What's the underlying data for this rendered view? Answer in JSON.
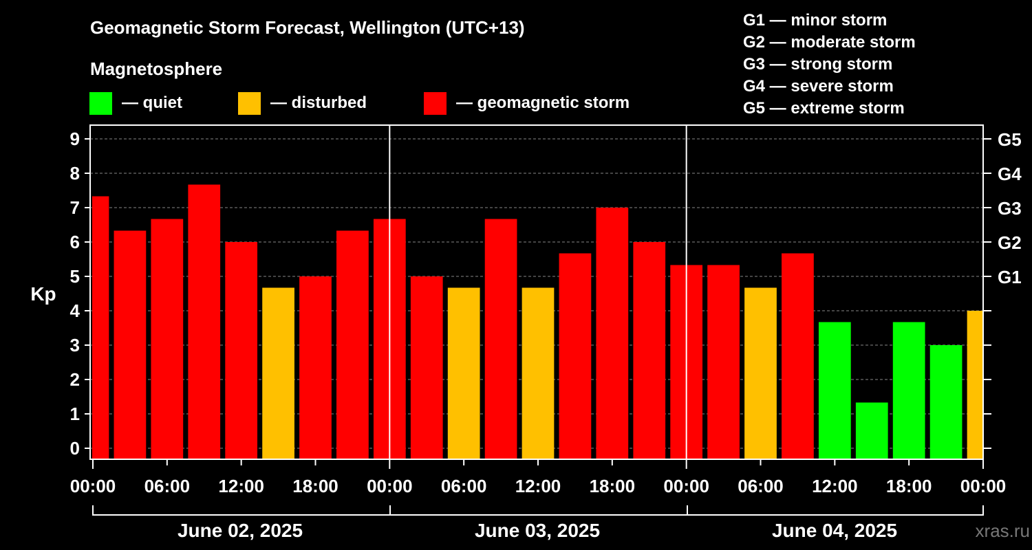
{
  "colors": {
    "background": "#000000",
    "text": "#ffffff",
    "quiet": "#00ff00",
    "disturbed": "#ffc000",
    "storm": "#ff0000",
    "grid": "#888888"
  },
  "header": {
    "title": "Geomagnetic Storm Forecast, Wellington (UTC+13)",
    "section_label": "Magnetosphere"
  },
  "legend": [
    {
      "key": "quiet",
      "label": "— quiet"
    },
    {
      "key": "disturbed",
      "label": "— disturbed"
    },
    {
      "key": "storm",
      "label": "— geomagnetic storm"
    }
  ],
  "g_scale": [
    "G1 — minor storm",
    "G2 — moderate storm",
    "G3 — strong storm",
    "G4 — severe storm",
    "G5 — extreme storm"
  ],
  "watermark": "xras.ru",
  "chart_data": {
    "type": "bar",
    "ylabel": "Kp",
    "ylim": [
      0,
      9
    ],
    "yticks": [
      "0",
      "1",
      "2",
      "3",
      "4",
      "5",
      "6",
      "7",
      "8",
      "9"
    ],
    "right_ticks": [
      {
        "kp": 5,
        "label": "G1"
      },
      {
        "kp": 6,
        "label": "G2"
      },
      {
        "kp": 7,
        "label": "G3"
      },
      {
        "kp": 8,
        "label": "G4"
      },
      {
        "kp": 9,
        "label": "G5"
      }
    ],
    "x_tick_labels": [
      "00:00",
      "06:00",
      "12:00",
      "18:00",
      "00:00",
      "06:00",
      "12:00",
      "18:00",
      "00:00",
      "06:00",
      "12:00",
      "18:00",
      "00:00"
    ],
    "dates": [
      "June 02, 2025",
      "June 03, 2025",
      "June 04, 2025"
    ],
    "x_span_hours": 72,
    "bar_width_hours": 2.6,
    "bars": [
      {
        "start_hour": -1.5,
        "end_hour": 1.5,
        "value": 7.33,
        "level": "storm"
      },
      {
        "start_hour": 1.5,
        "end_hour": 4.5,
        "value": 6.33,
        "level": "storm"
      },
      {
        "start_hour": 4.5,
        "end_hour": 7.5,
        "value": 6.67,
        "level": "storm"
      },
      {
        "start_hour": 7.5,
        "end_hour": 10.5,
        "value": 7.67,
        "level": "storm"
      },
      {
        "start_hour": 10.5,
        "end_hour": 13.5,
        "value": 6.0,
        "level": "storm"
      },
      {
        "start_hour": 13.5,
        "end_hour": 16.5,
        "value": 4.67,
        "level": "disturbed"
      },
      {
        "start_hour": 16.5,
        "end_hour": 19.5,
        "value": 5.0,
        "level": "storm"
      },
      {
        "start_hour": 19.5,
        "end_hour": 22.5,
        "value": 6.33,
        "level": "storm"
      },
      {
        "start_hour": 22.5,
        "end_hour": 25.5,
        "value": 6.67,
        "level": "storm"
      },
      {
        "start_hour": 25.5,
        "end_hour": 28.5,
        "value": 5.0,
        "level": "storm"
      },
      {
        "start_hour": 28.5,
        "end_hour": 31.5,
        "value": 4.67,
        "level": "disturbed"
      },
      {
        "start_hour": 31.5,
        "end_hour": 34.5,
        "value": 6.67,
        "level": "storm"
      },
      {
        "start_hour": 34.5,
        "end_hour": 37.5,
        "value": 4.67,
        "level": "disturbed"
      },
      {
        "start_hour": 37.5,
        "end_hour": 40.5,
        "value": 5.67,
        "level": "storm"
      },
      {
        "start_hour": 40.5,
        "end_hour": 43.5,
        "value": 7.0,
        "level": "storm"
      },
      {
        "start_hour": 43.5,
        "end_hour": 46.5,
        "value": 6.0,
        "level": "storm"
      },
      {
        "start_hour": 46.5,
        "end_hour": 49.5,
        "value": 5.33,
        "level": "storm"
      },
      {
        "start_hour": 49.5,
        "end_hour": 52.5,
        "value": 5.33,
        "level": "storm"
      },
      {
        "start_hour": 52.5,
        "end_hour": 55.5,
        "value": 4.67,
        "level": "disturbed"
      },
      {
        "start_hour": 55.5,
        "end_hour": 58.5,
        "value": 5.67,
        "level": "storm"
      },
      {
        "start_hour": 58.5,
        "end_hour": 61.5,
        "value": 3.67,
        "level": "quiet"
      },
      {
        "start_hour": 61.5,
        "end_hour": 64.5,
        "value": 1.33,
        "level": "quiet"
      },
      {
        "start_hour": 64.5,
        "end_hour": 67.5,
        "value": 3.67,
        "level": "quiet"
      },
      {
        "start_hour": 67.5,
        "end_hour": 70.5,
        "value": 3.0,
        "level": "quiet"
      },
      {
        "start_hour": 70.5,
        "end_hour": 73.5,
        "value": 4.0,
        "level": "disturbed"
      }
    ]
  }
}
